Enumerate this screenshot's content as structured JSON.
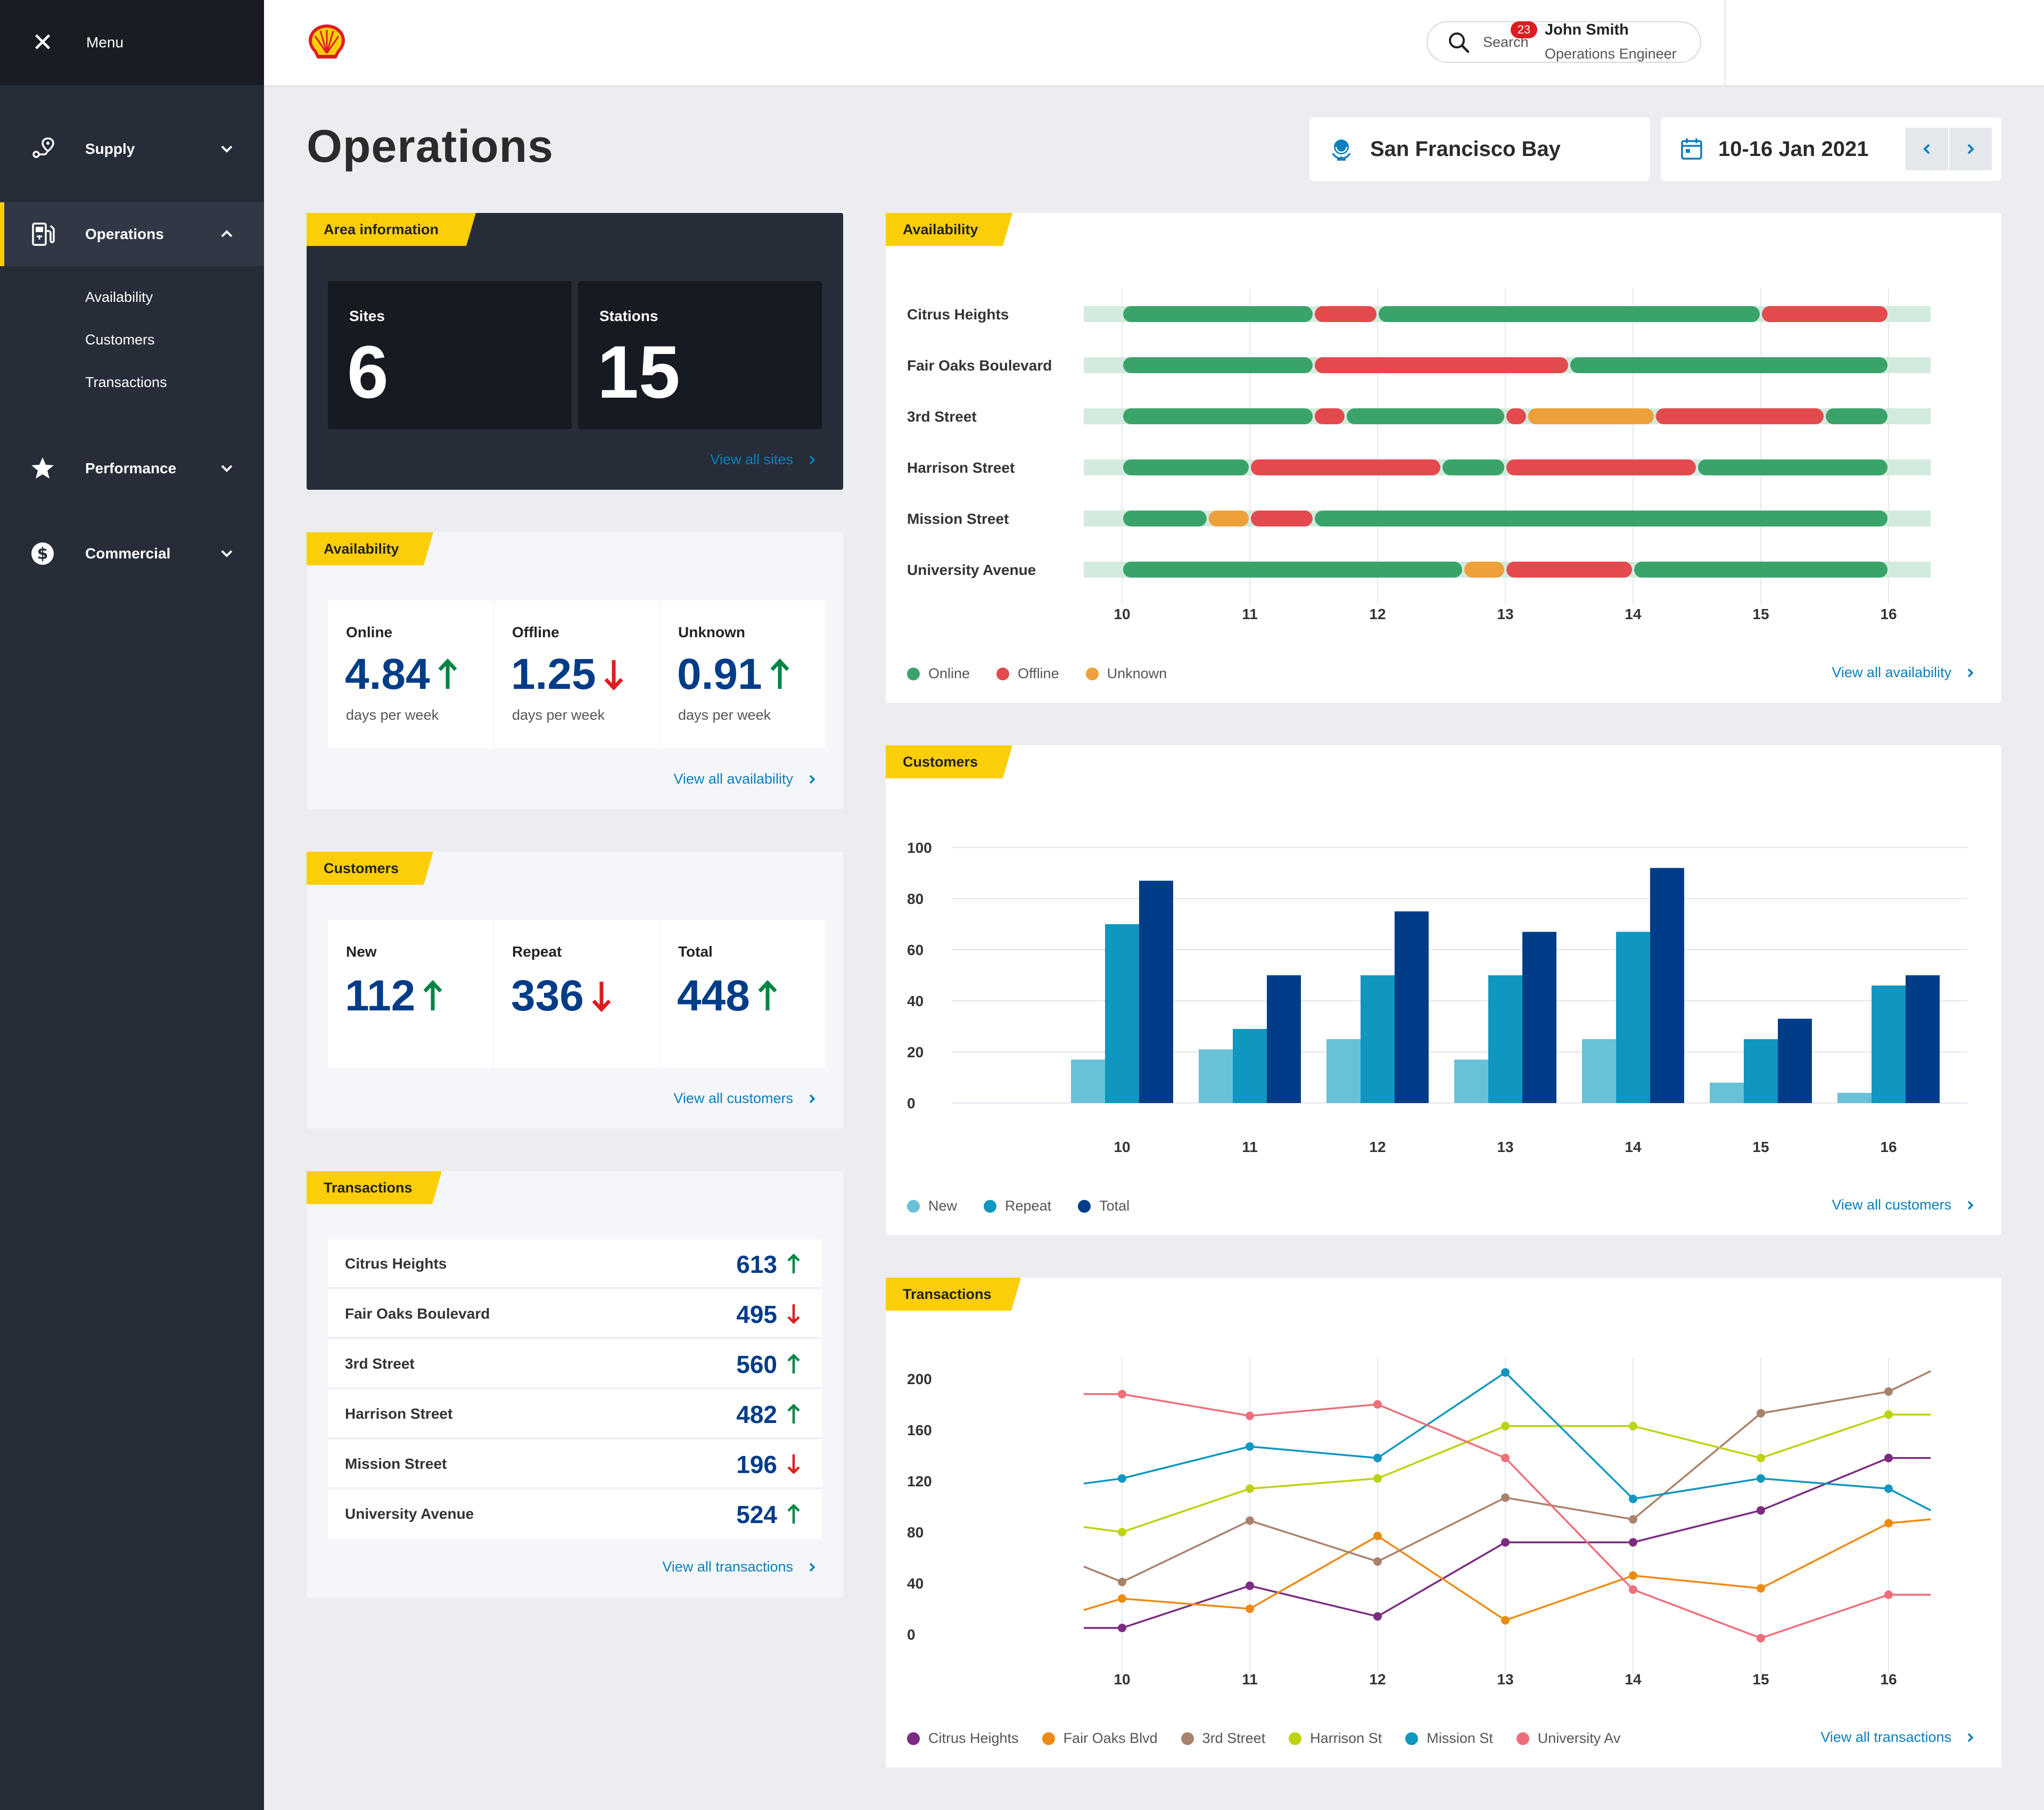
{
  "sidebar": {
    "menu_label": "Menu",
    "items": [
      {
        "label": "Supply",
        "icon": "route-pin-icon"
      },
      {
        "label": "Operations",
        "icon": "fuel-pump-icon"
      },
      {
        "label": "Performance",
        "icon": "star-icon"
      },
      {
        "label": "Commercial",
        "icon": "dollar-icon"
      }
    ],
    "subitems": [
      "Availability",
      "Customers",
      "Transactions"
    ]
  },
  "topbar": {
    "search_placeholder": "Search",
    "notification_count": "23",
    "user_name": "John Smith",
    "user_role": "Operations Engineer"
  },
  "header": {
    "title": "Operations",
    "location": "San Francisco Bay",
    "date_range": "10-16 Jan 2021"
  },
  "area": {
    "label": "Area information",
    "sites_label": "Sites",
    "sites_value": "6",
    "stations_label": "Stations",
    "stations_value": "15",
    "link": "View all sites"
  },
  "availability_summary": {
    "label": "Availability",
    "stats": [
      {
        "label": "Online",
        "value": "4.84",
        "sub": "days per week",
        "trend": "up"
      },
      {
        "label": "Offline",
        "value": "1.25",
        "sub": "days per week",
        "trend": "down"
      },
      {
        "label": "Unknown",
        "value": "0.91",
        "sub": "days per week",
        "trend": "up"
      }
    ],
    "link": "View all availability"
  },
  "customers_summary": {
    "label": "Customers",
    "stats": [
      {
        "label": "New",
        "value": "112",
        "trend": "up"
      },
      {
        "label": "Repeat",
        "value": "336",
        "trend": "down"
      },
      {
        "label": "Total",
        "value": "448",
        "trend": "up"
      }
    ],
    "link": "View all customers"
  },
  "transactions_summary": {
    "label": "Transactions",
    "rows": [
      {
        "name": "Citrus Heights",
        "value": "613",
        "trend": "up"
      },
      {
        "name": "Fair Oaks Boulevard",
        "value": "495",
        "trend": "down"
      },
      {
        "name": "3rd Street",
        "value": "560",
        "trend": "up"
      },
      {
        "name": "Harrison Street",
        "value": "482",
        "trend": "up"
      },
      {
        "name": "Mission Street",
        "value": "196",
        "trend": "down"
      },
      {
        "name": "University Avenue",
        "value": "524",
        "trend": "up"
      }
    ],
    "link": "View all transactions"
  },
  "colors": {
    "accent": "#fbce07",
    "online": "#3aa36a",
    "offline": "#e34a4e",
    "unknown": "#eea13a",
    "track": "#d3ebde",
    "new": "#69c1d8",
    "repeat": "#0f97c0",
    "total": "#003c88",
    "up": "#008443",
    "down": "#dd1d21"
  },
  "availability_chart": {
    "label": "Availability",
    "link": "View all availability",
    "legend": [
      "Online",
      "Offline",
      "Unknown"
    ]
  },
  "customers_chart": {
    "label": "Customers",
    "link": "View all customers",
    "legend": [
      "New",
      "Repeat",
      "Total"
    ]
  },
  "transactions_chart": {
    "label": "Transactions",
    "link": "View all transactions",
    "legend": [
      "Citrus Heights",
      "Fair Oaks Blvd",
      "3rd Street",
      "Harrison St",
      "Mission St",
      "University Av"
    ]
  },
  "chart_data": [
    {
      "type": "timeline",
      "x_ticks": [
        10,
        11,
        12,
        13,
        14,
        15,
        16
      ],
      "xlim": [
        9.7,
        16.33
      ],
      "rows": [
        {
          "name": "Citrus Heights",
          "segments": [
            [
              10,
              11.5,
              "Online"
            ],
            [
              11.5,
              12,
              "Offline"
            ],
            [
              12,
              15,
              "Online"
            ],
            [
              15,
              16,
              "Offline"
            ]
          ]
        },
        {
          "name": "Fair Oaks Boulevard",
          "segments": [
            [
              10,
              11.5,
              "Online"
            ],
            [
              11.5,
              13.5,
              "Offline"
            ],
            [
              13.5,
              16,
              "Online"
            ]
          ]
        },
        {
          "name": "3rd Street",
          "segments": [
            [
              10,
              11.5,
              "Online"
            ],
            [
              11.5,
              11.75,
              "Offline"
            ],
            [
              11.75,
              13,
              "Online"
            ],
            [
              13,
              13.17,
              "Offline"
            ],
            [
              13.17,
              14.17,
              "Unknown"
            ],
            [
              14.17,
              15.5,
              "Offline"
            ],
            [
              15.5,
              16,
              "Online"
            ]
          ]
        },
        {
          "name": "Harrison Street",
          "segments": [
            [
              10,
              11,
              "Online"
            ],
            [
              11,
              12.5,
              "Offline"
            ],
            [
              12.5,
              13,
              "Online"
            ],
            [
              13,
              14.5,
              "Offline"
            ],
            [
              14.5,
              16,
              "Online"
            ]
          ]
        },
        {
          "name": "Mission Street",
          "segments": [
            [
              10,
              10.67,
              "Online"
            ],
            [
              10.67,
              11,
              "Unknown"
            ],
            [
              11,
              11.5,
              "Offline"
            ],
            [
              11.5,
              16,
              "Online"
            ]
          ]
        },
        {
          "name": "University Avenue",
          "segments": [
            [
              10,
              12.67,
              "Online"
            ],
            [
              12.67,
              13,
              "Unknown"
            ],
            [
              13,
              14,
              "Offline"
            ],
            [
              14,
              16,
              "Online"
            ]
          ]
        }
      ]
    },
    {
      "type": "bar",
      "categories": [
        "10",
        "11",
        "12",
        "13",
        "14",
        "15",
        "16"
      ],
      "series": [
        {
          "name": "New",
          "values": [
            17,
            21,
            25,
            17,
            25,
            8,
            4
          ]
        },
        {
          "name": "Repeat",
          "values": [
            70,
            29,
            50,
            50,
            67,
            25,
            46
          ]
        },
        {
          "name": "Total",
          "values": [
            87,
            50,
            75,
            67,
            92,
            33,
            50
          ]
        }
      ],
      "ylim": [
        0,
        100
      ],
      "y_ticks": [
        0,
        20,
        40,
        60,
        80,
        100
      ]
    },
    {
      "type": "line",
      "x": [
        10,
        11,
        12,
        13,
        14,
        15,
        16
      ],
      "xlim": [
        9.7,
        16.33
      ],
      "ylim": [
        0,
        200
      ],
      "y_ticks": [
        0,
        40,
        80,
        120,
        160,
        200
      ],
      "series": [
        {
          "name": "Citrus Heights",
          "color": "#7b2b82",
          "values": [
            5,
            38,
            14,
            72,
            72,
            97,
            138
          ],
          "start": 5,
          "end": 138
        },
        {
          "name": "Fair Oaks Blvd",
          "color": "#ee8a12",
          "values": [
            28,
            20,
            77,
            11,
            46,
            36,
            87
          ],
          "start": 19,
          "end": 90
        },
        {
          "name": "3rd Street",
          "color": "#a9826b",
          "values": [
            41,
            89,
            57,
            107,
            90,
            173,
            190
          ],
          "start": 53,
          "end": 206
        },
        {
          "name": "Harrison St",
          "color": "#bcd30d",
          "values": [
            80,
            114,
            122,
            163,
            163,
            138,
            172
          ],
          "start": 84,
          "end": 172
        },
        {
          "name": "Mission St",
          "color": "#0f97c0",
          "values": [
            122,
            147,
            138,
            205,
            106,
            122,
            114
          ],
          "start": 118,
          "end": 97
        },
        {
          "name": "University Av",
          "color": "#ee6e7a",
          "values": [
            188,
            171,
            180,
            138,
            35,
            -3,
            31
          ],
          "start": 188,
          "end": 31
        }
      ]
    }
  ]
}
